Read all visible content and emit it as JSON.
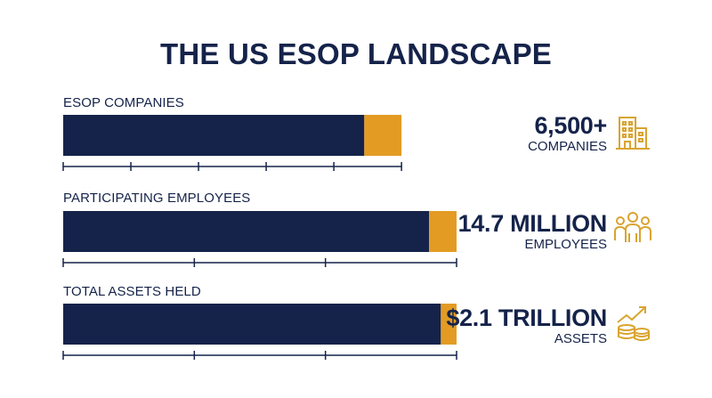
{
  "title": "THE US ESOP LANDSCAPE",
  "colors": {
    "navy": "#15234a",
    "gold": "#e39b24",
    "icon": "#d9a430",
    "axis": "#15234a"
  },
  "chart_data": {
    "type": "bar",
    "orientation": "horizontal",
    "stacked": true,
    "categories": [
      "ESOP COMPANIES",
      "PARTICIPATING EMPLOYEES",
      "TOTAL ASSETS HELD"
    ],
    "rows": [
      {
        "label": "ESOP COMPANIES",
        "total_fraction": 0.86,
        "navy_fraction": 0.89,
        "value_text": "6,500+",
        "unit_text": "COMPANIES",
        "icon": "building-icon",
        "ticks": 6
      },
      {
        "label": "PARTICIPATING EMPLOYEES",
        "total_fraction": 1.0,
        "navy_fraction": 0.93,
        "value_text": "14.7 MILLION",
        "unit_text": "EMPLOYEES",
        "icon": "people-icon",
        "ticks": 4
      },
      {
        "label": "TOTAL ASSETS HELD",
        "total_fraction": 1.0,
        "navy_fraction": 0.96,
        "value_text": "$2.1 TRILLION",
        "unit_text": "ASSETS",
        "icon": "coins-growth-icon",
        "ticks": 4
      }
    ]
  }
}
